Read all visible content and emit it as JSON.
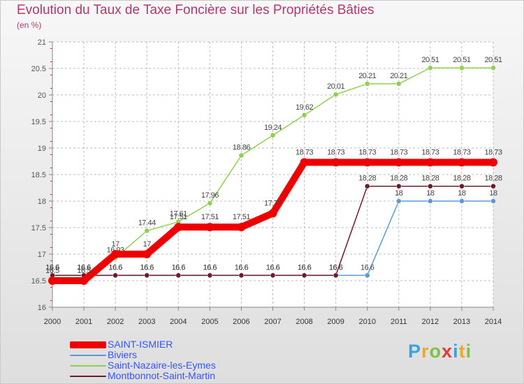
{
  "title": "Evolution du Taux de Taxe Foncière sur les Propriétés Bâties",
  "unit": "(en %)",
  "logo": {
    "letters": [
      {
        "ch": "P",
        "color": "#3aa3dc"
      },
      {
        "ch": "r",
        "color": "#f5a623"
      },
      {
        "ch": "o",
        "color": "#7dc242"
      },
      {
        "ch": "x",
        "color": "#e8373b"
      },
      {
        "ch": "i",
        "color": "#3aa3dc"
      },
      {
        "ch": "t",
        "color": "#f5a623"
      },
      {
        "ch": "i",
        "color": "#7dc242"
      }
    ]
  },
  "chart_data": {
    "type": "line",
    "title": "Evolution du Taux de Taxe Foncière sur les Propriétés Bâties",
    "ylabel": "(en %)",
    "xlabel": "",
    "ylim": [
      16,
      21
    ],
    "yticks": [
      "16",
      "16.5",
      "17",
      "17.5",
      "18",
      "18.5",
      "19",
      "19.5",
      "20",
      "20.5",
      "21"
    ],
    "categories": [
      "2000",
      "2001",
      "2002",
      "2003",
      "2004",
      "2005",
      "2006",
      "2007",
      "2008",
      "2009",
      "2010",
      "2011",
      "2012",
      "2013",
      "2014"
    ],
    "grid": true,
    "series": [
      {
        "name": "Biviers",
        "color": "#5b9bd5",
        "values": [
          16.6,
          16.6,
          16.6,
          16.6,
          16.6,
          16.6,
          16.6,
          16.6,
          16.6,
          16.6,
          16.6,
          18,
          18,
          18,
          18
        ],
        "labels": [
          "16.6",
          "16.6",
          "16.6",
          "16.6",
          "16.6",
          "16.6",
          "16.6",
          "16.6",
          "16.6",
          "16.6",
          "16.6",
          "18",
          "18",
          "18",
          "18"
        ]
      },
      {
        "name": "Saint-Nazaire-les-Eymes",
        "color": "#8fd14f",
        "values": [
          16.6,
          16.6,
          16.93,
          17.44,
          17.61,
          17.96,
          18.86,
          19.24,
          19.62,
          20.01,
          20.21,
          20.21,
          20.51,
          20.51,
          20.51
        ],
        "labels": [
          "16.6",
          "16.6",
          "16.93",
          "17.44",
          "17.61",
          "17.96",
          "18.86",
          "19.24",
          "19.62",
          "20.01",
          "20.21",
          "20.21",
          "20.51",
          "20.51",
          "20.51"
        ]
      },
      {
        "name": "Montbonnot-Saint-Martin",
        "color": "#6b1b2b",
        "values": [
          16.6,
          16.6,
          16.6,
          16.6,
          16.6,
          16.6,
          16.6,
          16.6,
          16.6,
          16.6,
          18.28,
          18.28,
          18.28,
          18.28,
          18.28
        ],
        "labels": [
          "16.6",
          "16.6",
          "16.6",
          "16.6",
          "16.6",
          "16.6",
          "16.6",
          "16.6",
          "16.6",
          "16.6",
          "18.28",
          "18.28",
          "18.28",
          "18.28",
          "18.28"
        ]
      },
      {
        "name": "SAINT-ISMIER",
        "color": "#ee0000",
        "values": [
          16.5,
          16.5,
          17,
          17,
          17.51,
          17.51,
          17.51,
          17.77,
          18.73,
          18.73,
          18.73,
          18.73,
          18.73,
          18.73,
          18.73
        ],
        "labels": [
          "16.5",
          "16.5",
          "17",
          "17",
          "17.51",
          "17.51",
          "17.51",
          "17.77",
          "18.73",
          "18.73",
          "18.73",
          "18.73",
          "18.73",
          "18.73",
          "18.73"
        ]
      }
    ],
    "legend": [
      "SAINT-ISMIER",
      "Biviers",
      "Saint-Nazaire-les-Eymes",
      "Montbonnot-Saint-Martin"
    ]
  }
}
